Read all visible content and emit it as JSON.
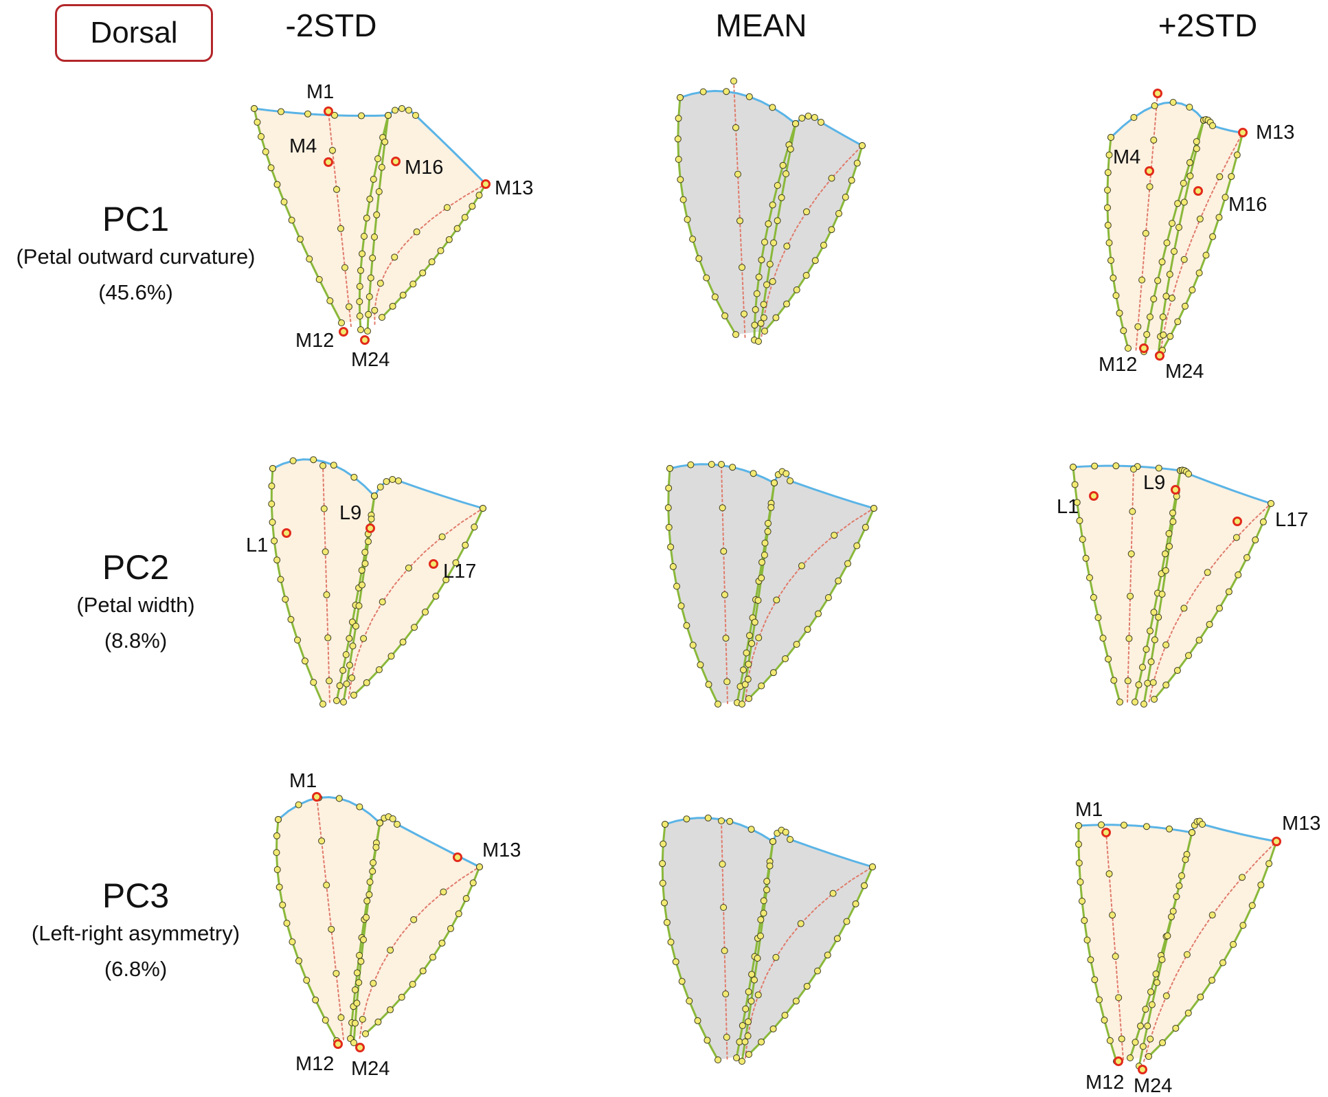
{
  "figure": {
    "view_label": "Dorsal",
    "columns": [
      "-2STD",
      "MEAN",
      "+2STD"
    ],
    "rows": [
      {
        "title": "PC1",
        "description": "(Petal outward curvature)",
        "variance": "(45.6%)"
      },
      {
        "title": "PC2",
        "description": "(Petal width)",
        "variance": "(8.8%)"
      },
      {
        "title": "PC3",
        "description": "(Left-right asymmetry)",
        "variance": "(6.8%)"
      }
    ],
    "colors": {
      "edge_blue": "#5ab4e6",
      "edge_green": "#8ab83a",
      "midline_red": "#e07a6a",
      "fill_shape": "#fdf1e0",
      "fill_mean": "#dcdcdc",
      "landmark_yellow": "#f2ea72",
      "landmark_highlight": "#e22a1a"
    },
    "landmark_labels": {
      "pc1_minus": [
        "M1",
        "M4",
        "M16",
        "M13",
        "M12",
        "M24"
      ],
      "pc1_plus": [
        "M13",
        "M4",
        "M16",
        "M12",
        "M24"
      ],
      "pc2_minus": [
        "L9",
        "L1",
        "L17"
      ],
      "pc2_plus": [
        "L9",
        "L1",
        "L17"
      ],
      "pc3_minus": [
        "M1",
        "M13",
        "M12",
        "M24"
      ],
      "pc3_plus": [
        "M1",
        "M13",
        "M12",
        "M24"
      ]
    }
  }
}
